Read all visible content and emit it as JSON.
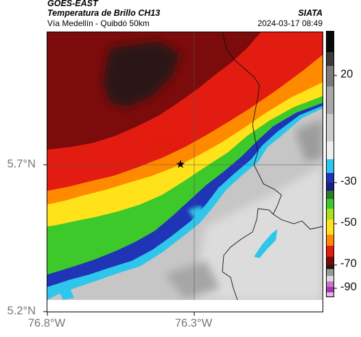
{
  "header": {
    "source": "GOES-EAST",
    "product": "Temperatura de Brillo CH13",
    "location": "Vía Medellín - Quibdó 50km",
    "org": "SIATA",
    "datetime": "2024-03-17 08:49"
  },
  "axes": {
    "lat_ticks": [
      "5.7°N",
      "5.2°N"
    ],
    "lon_ticks": [
      "76.8°W",
      "76.3°W"
    ]
  },
  "colorbar": {
    "ticks": [
      "20",
      "-30",
      "-50",
      "-70",
      "-90"
    ]
  },
  "marker": {
    "symbol": "star"
  },
  "colors": {
    "coldest": "#1a1a1a",
    "very_cold": "#7a0a0a",
    "cold": "#e01a10",
    "mid": "#ff8c00",
    "warm1": "#ffe000",
    "warm2": "#4ccd2a",
    "warm3": "#1a2fb8",
    "cyan": "#25c8e8",
    "ground": "#c8c8c8"
  }
}
